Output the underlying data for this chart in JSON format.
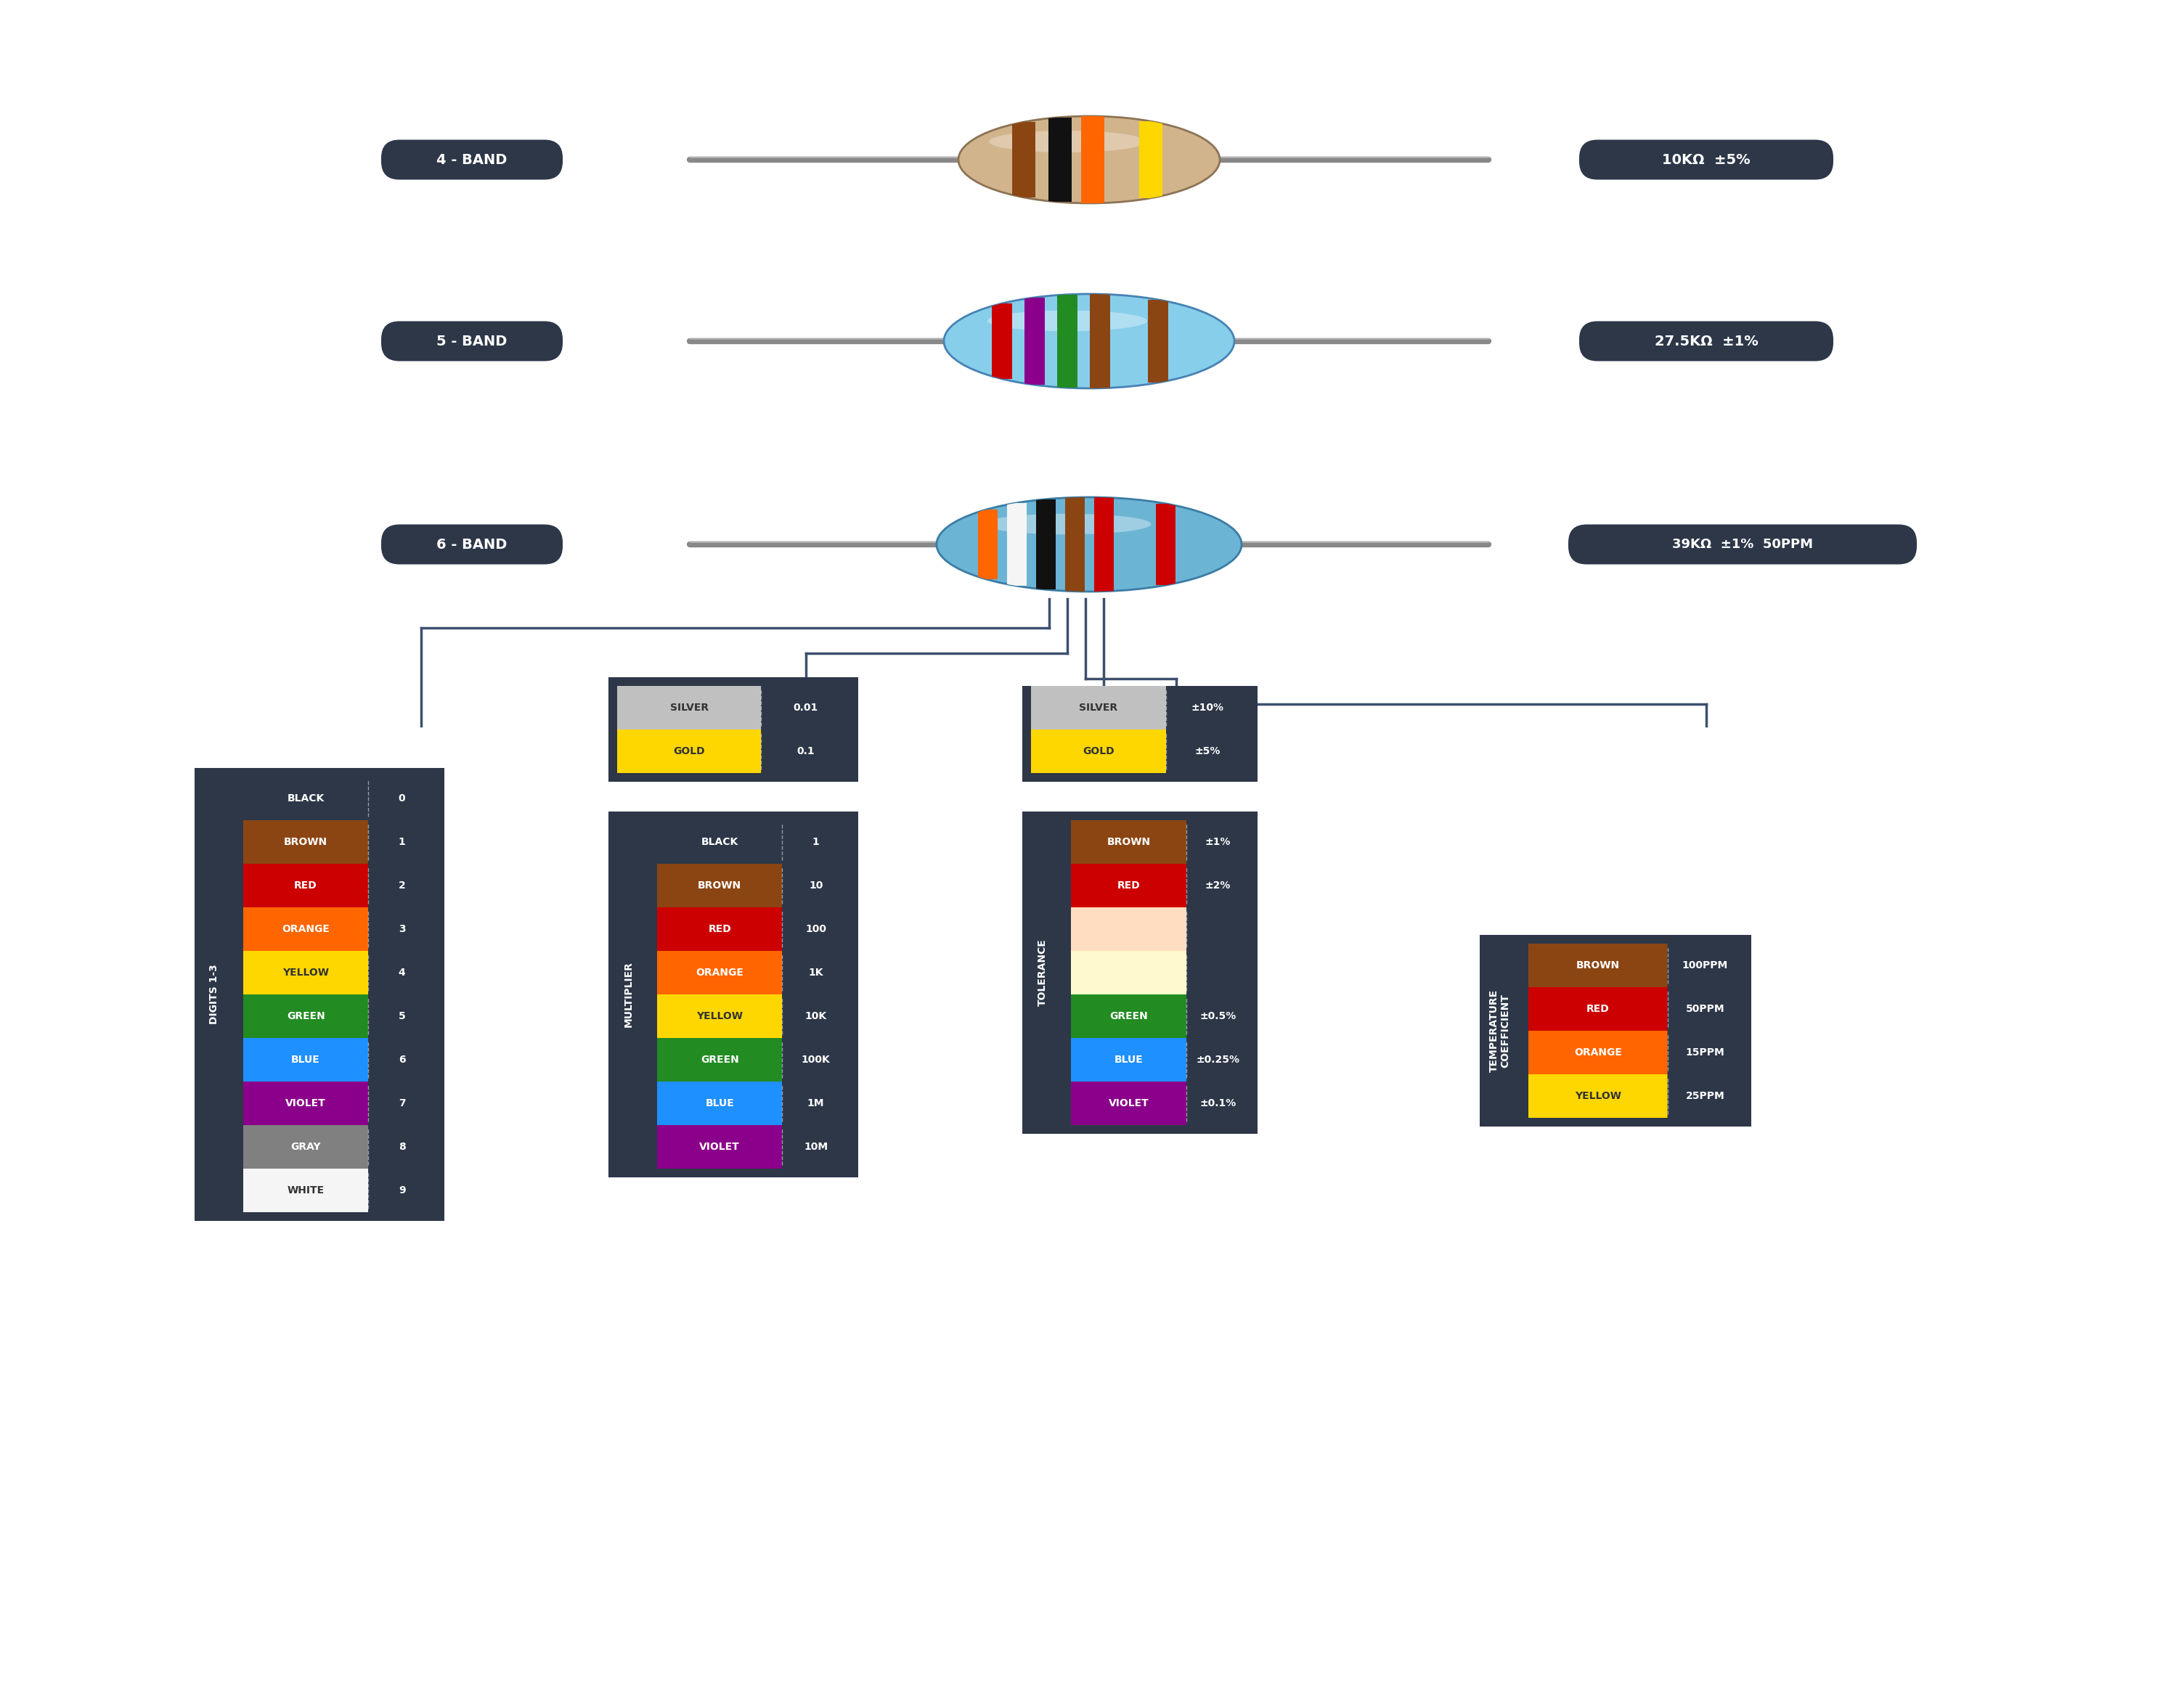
{
  "bg_color": "#ffffff",
  "dark_bg": "#2d3748",
  "resistor_colors": {
    "black": "#111111",
    "brown": "#8B4513",
    "red": "#CC0000",
    "orange": "#FF6600",
    "yellow": "#FFD700",
    "green": "#228B22",
    "blue": "#1E90FF",
    "violet": "#8B008B",
    "gray": "#808080",
    "white": "#F5F5F5",
    "silver": "#C0C0C0",
    "gold": "#FFD700",
    "pink": "#FFB6C1",
    "cream": "#FFFACD"
  },
  "band4_label": "4 - BAND",
  "band5_label": "5 - BAND",
  "band6_label": "6 - BAND",
  "band4_value": "10KΩ  ±5%",
  "band5_value": "27.5KΩ  ±1%",
  "band6_value": "39KΩ  ±1%  50PPM",
  "wire_color": "#2d3748",
  "line_color": "#4a5568"
}
